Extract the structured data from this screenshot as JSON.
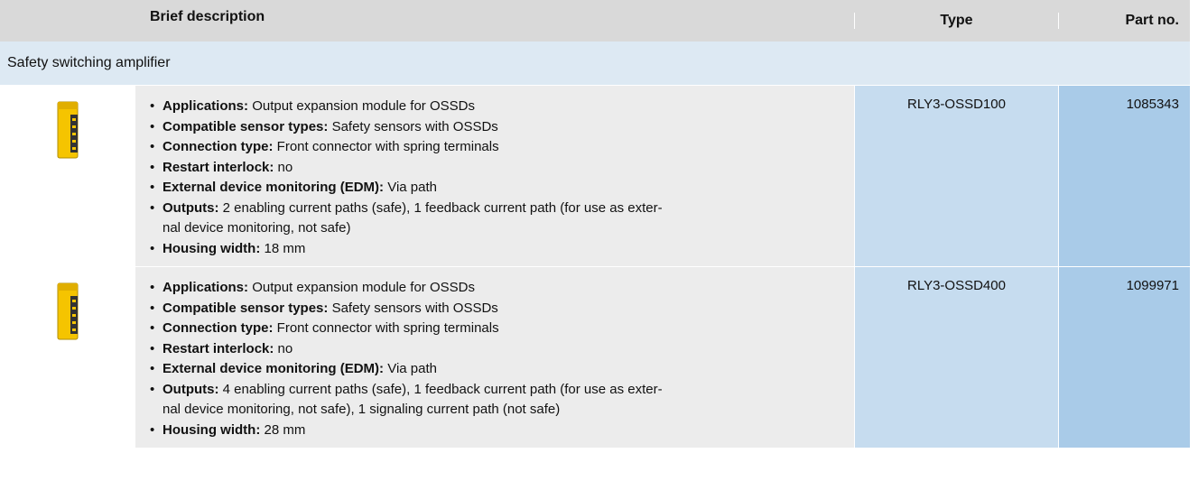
{
  "table": {
    "headers": [
      "Brief description",
      "Type",
      "Part no."
    ],
    "group": "Safety switching amplifier",
    "rows": [
      {
        "bullets": [
          {
            "label": "Applications:",
            "text": [
              "Output expansion module for OSSDs"
            ]
          },
          {
            "label": "Compatible sensor types:",
            "text": [
              "Safety sensors with OSSDs"
            ]
          },
          {
            "label": "Connection type:",
            "text": [
              "Front connector with spring terminals"
            ]
          },
          {
            "label": "Restart interlock:",
            "text": [
              "no"
            ]
          },
          {
            "label": "External device monitoring (EDM):",
            "text": [
              "Via path"
            ]
          },
          {
            "label": "Outputs:",
            "text": [
              "2 enabling current paths (safe), 1 feedback current path (for use as exter-",
              "nal device monitoring, not safe)"
            ]
          },
          {
            "label": "Housing width:",
            "text": [
              "18 mm"
            ]
          }
        ],
        "type": "RLY3-OSSD100",
        "part": "1085343"
      },
      {
        "bullets": [
          {
            "label": "Applications:",
            "text": [
              "Output expansion module for OSSDs"
            ]
          },
          {
            "label": "Compatible sensor types:",
            "text": [
              "Safety sensors with OSSDs"
            ]
          },
          {
            "label": "Connection type:",
            "text": [
              "Front connector with spring terminals"
            ]
          },
          {
            "label": "Restart interlock:",
            "text": [
              "no"
            ]
          },
          {
            "label": "External device monitoring (EDM):",
            "text": [
              "Via path"
            ]
          },
          {
            "label": "Outputs:",
            "text": [
              "4 enabling current paths (safe), 1 feedback current path (for use as exter-",
              "nal device monitoring, not safe), 1 signaling current path (not safe)"
            ]
          },
          {
            "label": "Housing width:",
            "text": [
              "28 mm"
            ]
          }
        ],
        "type": "RLY3-OSSD400",
        "part": "1099971"
      }
    ]
  }
}
